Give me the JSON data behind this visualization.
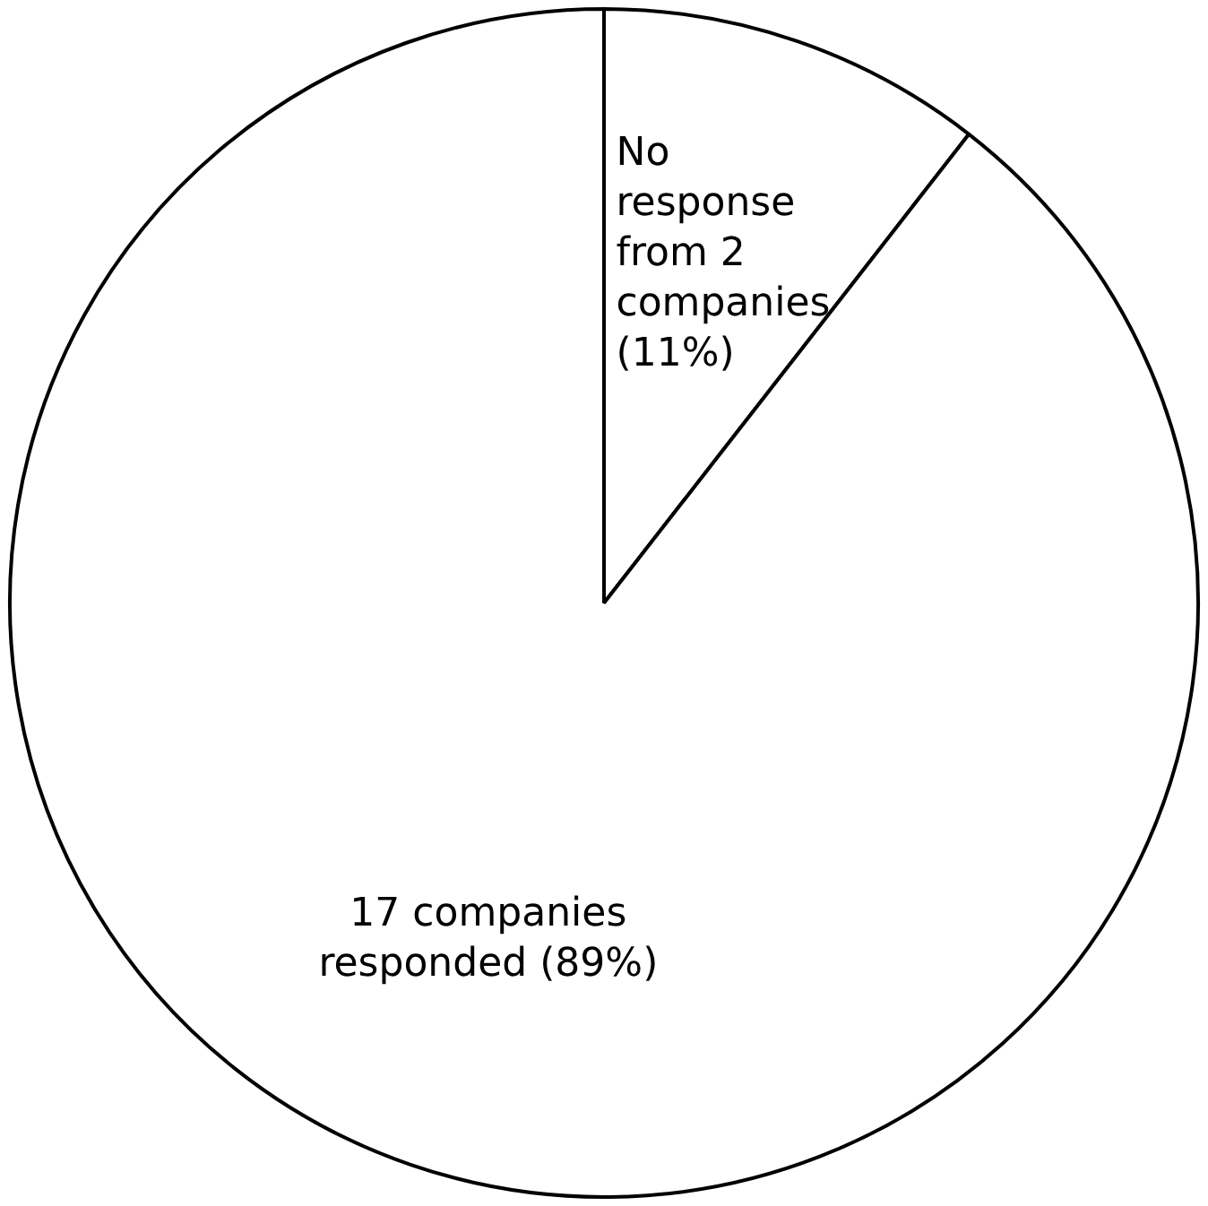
{
  "chart_data": {
    "type": "pie",
    "categories": [
      "No response from 2 companies (11%)",
      "17 companies responded (89%)"
    ],
    "values": [
      2,
      17
    ],
    "colors": [
      "#ffffff",
      "#ffffff"
    ]
  }
}
